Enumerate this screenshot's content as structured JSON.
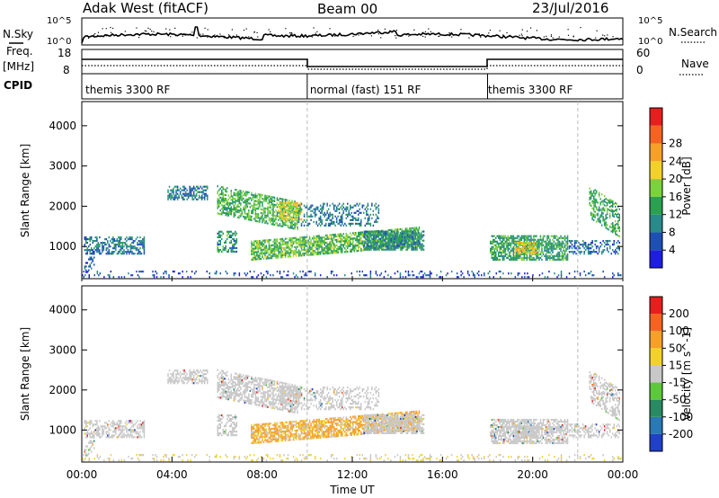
{
  "header": {
    "radar": "Adak West (fitACF)",
    "beam": "Beam 00",
    "date": "23/Jul/2016"
  },
  "left_labels": {
    "nsky": "N.Sky",
    "freq_top": "Freq.",
    "freq_unit": "[MHz]",
    "cpid": "CPID"
  },
  "right_labels": {
    "nsearch": "N.Search",
    "nave": "Nave"
  },
  "cpid_segments": [
    {
      "label": "themis 3300 RF",
      "start_h": 0,
      "end_h": 10
    },
    {
      "label": "normal (fast) 151 RF",
      "start_h": 10,
      "end_h": 18
    },
    {
      "label": "themis 3300 RF",
      "start_h": 18,
      "end_h": 24
    }
  ],
  "noise_axis": {
    "left_ticks": [
      "10^5",
      "10^0"
    ],
    "right_ticks": [
      "10^5",
      "10^0"
    ]
  },
  "freq_axis": {
    "left_ticks": [
      "18",
      "8"
    ],
    "right_ticks": [
      "60",
      "0"
    ]
  },
  "chart_data": [
    {
      "type": "heatmap",
      "name": "power",
      "ylabel": "Slant Range [km]",
      "ylim": [
        200,
        4600
      ],
      "yticks": [
        "1000",
        "2000",
        "3000",
        "4000"
      ],
      "xlim_hours": [
        0,
        24
      ],
      "colorbar": {
        "label": "Power [dB]",
        "ticks": [
          "4",
          "8",
          "12",
          "16",
          "20",
          "24",
          "28"
        ],
        "colors": [
          "#1e1ee0",
          "#1e50b4",
          "#2a8a8a",
          "#2aa050",
          "#7ad23c",
          "#f2d22a",
          "#f6a02a",
          "#f46420",
          "#e61e1e"
        ]
      }
    },
    {
      "type": "heatmap",
      "name": "velocity",
      "ylabel": "Slant Range [km]",
      "ylim": [
        200,
        4600
      ],
      "yticks": [
        "1000",
        "2000",
        "3000",
        "4000"
      ],
      "xlabel": "Time UT",
      "xticks": [
        "00:00",
        "04:00",
        "08:00",
        "12:00",
        "16:00",
        "20:00",
        "00:00"
      ],
      "colorbar": {
        "label": "Velocity [m s^-1]",
        "ticks": [
          "200",
          "100",
          "50",
          "15",
          "-15",
          "-50",
          "-100",
          "-200"
        ],
        "colors": [
          "#2040c8",
          "#2a78b4",
          "#2a8a64",
          "#5ec83c",
          "#c8c8c8",
          "#f2d22a",
          "#f6a02a",
          "#f46420",
          "#e61e1e"
        ]
      }
    }
  ]
}
